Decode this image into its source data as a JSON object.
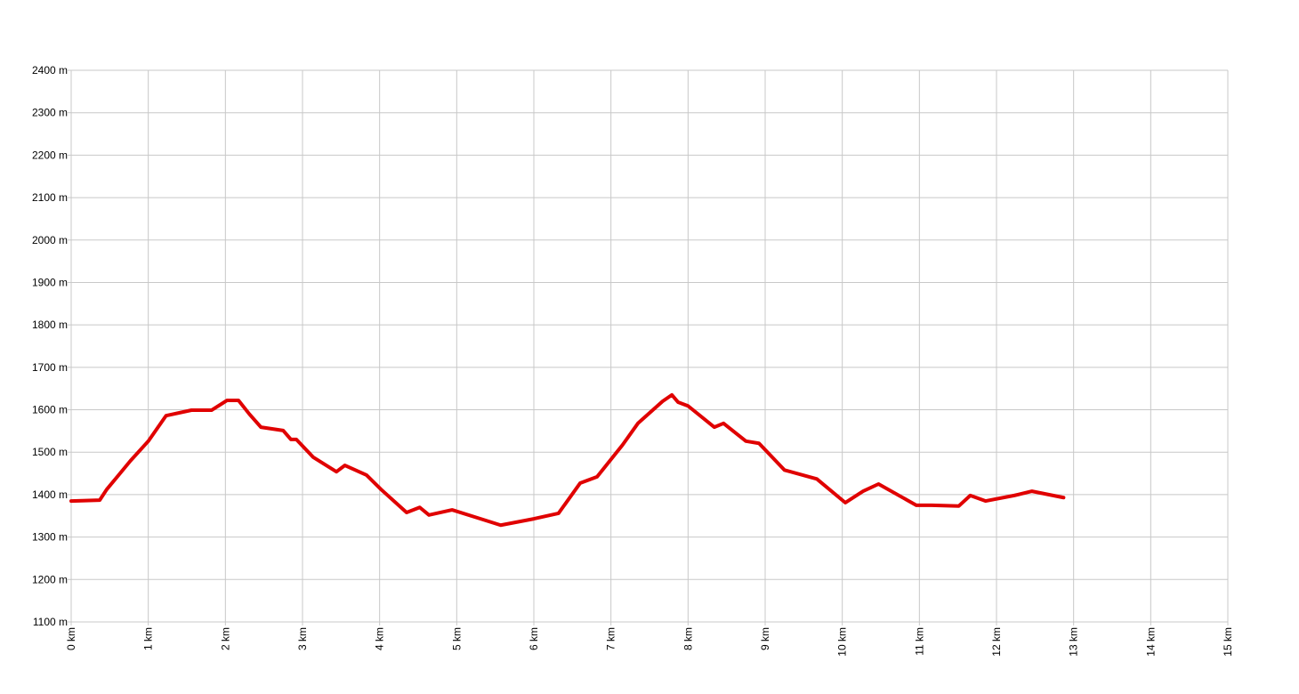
{
  "chart_data": {
    "type": "line",
    "color": "#e00000",
    "grid": true,
    "xlim": [
      0,
      15
    ],
    "ylim": [
      1100,
      2400
    ],
    "xticks": [
      {
        "value": 0,
        "label": "0 km"
      },
      {
        "value": 1,
        "label": "1 km"
      },
      {
        "value": 2,
        "label": "2 km"
      },
      {
        "value": 3,
        "label": "3 km"
      },
      {
        "value": 4,
        "label": "4 km"
      },
      {
        "value": 5,
        "label": "5 km"
      },
      {
        "value": 6,
        "label": "6 km"
      },
      {
        "value": 7,
        "label": "7 km"
      },
      {
        "value": 8,
        "label": "8 km"
      },
      {
        "value": 9,
        "label": "9 km"
      },
      {
        "value": 10,
        "label": "10 km"
      },
      {
        "value": 11,
        "label": "11 km"
      },
      {
        "value": 12,
        "label": "12 km"
      },
      {
        "value": 13,
        "label": "13 km"
      },
      {
        "value": 14,
        "label": "14 km"
      },
      {
        "value": 15,
        "label": "15 km"
      }
    ],
    "yticks": [
      {
        "value": 1100,
        "label": "1100 m"
      },
      {
        "value": 1200,
        "label": "1200 m"
      },
      {
        "value": 1300,
        "label": "1300 m"
      },
      {
        "value": 1400,
        "label": "1400 m"
      },
      {
        "value": 1500,
        "label": "1500 m"
      },
      {
        "value": 1600,
        "label": "1600 m"
      },
      {
        "value": 1700,
        "label": "1700 m"
      },
      {
        "value": 1800,
        "label": "1800 m"
      },
      {
        "value": 1900,
        "label": "1900 m"
      },
      {
        "value": 2000,
        "label": "2000 m"
      },
      {
        "value": 2100,
        "label": "2100 m"
      },
      {
        "value": 2200,
        "label": "2200 m"
      },
      {
        "value": 2300,
        "label": "2300 m"
      },
      {
        "value": 2400,
        "label": "2400 m"
      }
    ],
    "x": [
      0,
      0.37,
      0.46,
      0.77,
      1.0,
      1.23,
      1.56,
      1.82,
      2.02,
      2.17,
      2.31,
      2.46,
      2.75,
      2.85,
      2.92,
      3.14,
      3.44,
      3.55,
      3.83,
      4.02,
      4.35,
      4.52,
      4.64,
      4.94,
      5.31,
      5.57,
      6.0,
      6.32,
      6.6,
      6.82,
      7.15,
      7.35,
      7.67,
      7.79,
      7.87,
      8.0,
      8.34,
      8.46,
      8.75,
      8.92,
      9.25,
      9.67,
      10.04,
      10.27,
      10.47,
      10.96,
      11.16,
      11.51,
      11.66,
      11.86,
      12.23,
      12.46,
      12.87
    ],
    "values": [
      1385,
      1387,
      1412,
      1480,
      1526,
      1586,
      1599,
      1599,
      1622,
      1622,
      1590,
      1559,
      1551,
      1530,
      1530,
      1488,
      1454,
      1469,
      1446,
      1412,
      1358,
      1370,
      1352,
      1364,
      1343,
      1328,
      1343,
      1356,
      1427,
      1442,
      1517,
      1568,
      1620,
      1635,
      1618,
      1609,
      1559,
      1568,
      1526,
      1521,
      1458,
      1437,
      1381,
      1408,
      1425,
      1375,
      1375,
      1373,
      1398,
      1385,
      1398,
      1408,
      1393
    ]
  }
}
